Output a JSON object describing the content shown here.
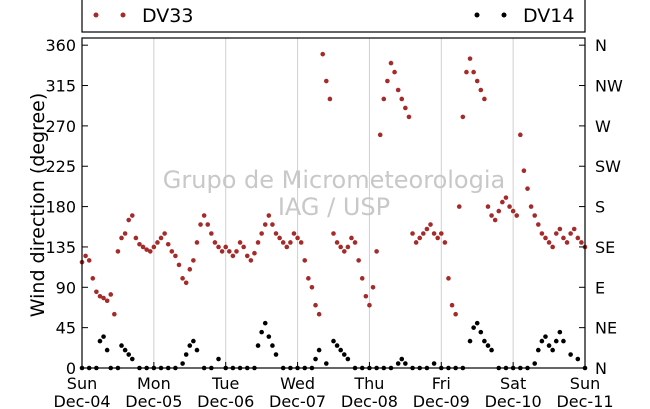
{
  "watermark": {
    "line1": "Grupo de Micrometeorologia",
    "line2": "IAG / USP"
  },
  "chart_data": {
    "type": "scatter",
    "title": "",
    "xlabel": "",
    "ylabel": "Wind direction (degree)",
    "xlim": [
      0,
      7
    ],
    "ylim": [
      0,
      368
    ],
    "yticks": [
      0,
      45,
      90,
      135,
      180,
      225,
      270,
      315,
      360
    ],
    "right_ticks": [
      {
        "value": 0,
        "label": "N"
      },
      {
        "value": 45,
        "label": "NE"
      },
      {
        "value": 90,
        "label": "E"
      },
      {
        "value": 135,
        "label": "SE"
      },
      {
        "value": 180,
        "label": "S"
      },
      {
        "value": 225,
        "label": "SW"
      },
      {
        "value": 270,
        "label": "W"
      },
      {
        "value": 315,
        "label": "NW"
      },
      {
        "value": 360,
        "label": "N"
      }
    ],
    "xticks": [
      {
        "value": 0,
        "day": "Sun",
        "date": "Dec-04"
      },
      {
        "value": 1,
        "day": "Mon",
        "date": "Dec-05"
      },
      {
        "value": 2,
        "day": "Tue",
        "date": "Dec-06"
      },
      {
        "value": 3,
        "day": "Wed",
        "date": "Dec-07"
      },
      {
        "value": 4,
        "day": "Thu",
        "date": "Dec-08"
      },
      {
        "value": 5,
        "day": "Fri",
        "date": "Dec-09"
      },
      {
        "value": 6,
        "day": "Sat",
        "date": "Dec-10"
      },
      {
        "value": 7,
        "day": "Sun",
        "date": "Dec-11"
      }
    ],
    "grid": "vertical",
    "legend_position": "top",
    "series": [
      {
        "name": "DV33",
        "color": "#a52a2a",
        "points": [
          [
            0.0,
            118
          ],
          [
            0.05,
            125
          ],
          [
            0.1,
            120
          ],
          [
            0.15,
            100
          ],
          [
            0.2,
            85
          ],
          [
            0.25,
            80
          ],
          [
            0.3,
            78
          ],
          [
            0.35,
            75
          ],
          [
            0.4,
            82
          ],
          [
            0.45,
            60
          ],
          [
            0.5,
            130
          ],
          [
            0.55,
            145
          ],
          [
            0.6,
            150
          ],
          [
            0.65,
            165
          ],
          [
            0.7,
            170
          ],
          [
            0.75,
            145
          ],
          [
            0.8,
            138
          ],
          [
            0.85,
            135
          ],
          [
            0.9,
            132
          ],
          [
            0.95,
            130
          ],
          [
            1.0,
            135
          ],
          [
            1.05,
            140
          ],
          [
            1.1,
            145
          ],
          [
            1.15,
            150
          ],
          [
            1.2,
            138
          ],
          [
            1.25,
            130
          ],
          [
            1.3,
            125
          ],
          [
            1.35,
            115
          ],
          [
            1.4,
            100
          ],
          [
            1.45,
            95
          ],
          [
            1.5,
            110
          ],
          [
            1.55,
            120
          ],
          [
            1.6,
            140
          ],
          [
            1.65,
            160
          ],
          [
            1.7,
            170
          ],
          [
            1.75,
            160
          ],
          [
            1.8,
            150
          ],
          [
            1.85,
            140
          ],
          [
            1.9,
            135
          ],
          [
            1.95,
            130
          ],
          [
            2.0,
            135
          ],
          [
            2.05,
            130
          ],
          [
            2.1,
            125
          ],
          [
            2.15,
            130
          ],
          [
            2.2,
            140
          ],
          [
            2.25,
            135
          ],
          [
            2.3,
            125
          ],
          [
            2.35,
            120
          ],
          [
            2.4,
            128
          ],
          [
            2.45,
            140
          ],
          [
            2.5,
            150
          ],
          [
            2.55,
            160
          ],
          [
            2.6,
            170
          ],
          [
            2.65,
            160
          ],
          [
            2.7,
            150
          ],
          [
            2.75,
            145
          ],
          [
            2.8,
            140
          ],
          [
            2.85,
            135
          ],
          [
            2.9,
            140
          ],
          [
            2.95,
            150
          ],
          [
            3.0,
            145
          ],
          [
            3.05,
            140
          ],
          [
            3.1,
            120
          ],
          [
            3.15,
            100
          ],
          [
            3.2,
            90
          ],
          [
            3.25,
            70
          ],
          [
            3.3,
            60
          ],
          [
            3.35,
            350
          ],
          [
            3.4,
            320
          ],
          [
            3.45,
            300
          ],
          [
            3.5,
            150
          ],
          [
            3.55,
            140
          ],
          [
            3.6,
            135
          ],
          [
            3.65,
            130
          ],
          [
            3.7,
            135
          ],
          [
            3.75,
            145
          ],
          [
            3.8,
            140
          ],
          [
            3.85,
            120
          ],
          [
            3.9,
            100
          ],
          [
            3.95,
            80
          ],
          [
            4.0,
            70
          ],
          [
            4.05,
            90
          ],
          [
            4.1,
            130
          ],
          [
            4.15,
            260
          ],
          [
            4.2,
            300
          ],
          [
            4.25,
            320
          ],
          [
            4.3,
            340
          ],
          [
            4.35,
            330
          ],
          [
            4.4,
            310
          ],
          [
            4.45,
            300
          ],
          [
            4.5,
            290
          ],
          [
            4.55,
            280
          ],
          [
            4.6,
            150
          ],
          [
            4.65,
            140
          ],
          [
            4.7,
            145
          ],
          [
            4.75,
            150
          ],
          [
            4.8,
            155
          ],
          [
            4.85,
            160
          ],
          [
            4.9,
            150
          ],
          [
            4.95,
            145
          ],
          [
            5.0,
            150
          ],
          [
            5.05,
            140
          ],
          [
            5.1,
            100
          ],
          [
            5.15,
            70
          ],
          [
            5.2,
            60
          ],
          [
            5.25,
            180
          ],
          [
            5.3,
            280
          ],
          [
            5.35,
            330
          ],
          [
            5.4,
            345
          ],
          [
            5.45,
            330
          ],
          [
            5.5,
            320
          ],
          [
            5.55,
            310
          ],
          [
            5.6,
            300
          ],
          [
            5.65,
            180
          ],
          [
            5.7,
            170
          ],
          [
            5.75,
            165
          ],
          [
            5.8,
            175
          ],
          [
            5.85,
            185
          ],
          [
            5.9,
            190
          ],
          [
            5.95,
            180
          ],
          [
            6.0,
            175
          ],
          [
            6.05,
            170
          ],
          [
            6.1,
            260
          ],
          [
            6.15,
            220
          ],
          [
            6.2,
            200
          ],
          [
            6.25,
            180
          ],
          [
            6.3,
            170
          ],
          [
            6.35,
            160
          ],
          [
            6.4,
            150
          ],
          [
            6.45,
            145
          ],
          [
            6.5,
            140
          ],
          [
            6.55,
            135
          ],
          [
            6.6,
            150
          ],
          [
            6.65,
            155
          ],
          [
            6.7,
            145
          ],
          [
            6.75,
            140
          ],
          [
            6.8,
            150
          ],
          [
            6.85,
            155
          ],
          [
            6.9,
            145
          ],
          [
            6.95,
            140
          ],
          [
            7.0,
            135
          ]
        ]
      },
      {
        "name": "DV14",
        "color": "#000000",
        "points": [
          [
            0.0,
            0
          ],
          [
            0.1,
            0
          ],
          [
            0.2,
            0
          ],
          [
            0.25,
            30
          ],
          [
            0.3,
            35
          ],
          [
            0.35,
            20
          ],
          [
            0.4,
            0
          ],
          [
            0.5,
            0
          ],
          [
            0.55,
            25
          ],
          [
            0.6,
            20
          ],
          [
            0.65,
            15
          ],
          [
            0.7,
            10
          ],
          [
            0.8,
            0
          ],
          [
            0.9,
            0
          ],
          [
            1.0,
            0
          ],
          [
            1.1,
            0
          ],
          [
            1.2,
            0
          ],
          [
            1.3,
            0
          ],
          [
            1.4,
            5
          ],
          [
            1.45,
            15
          ],
          [
            1.5,
            25
          ],
          [
            1.55,
            30
          ],
          [
            1.6,
            20
          ],
          [
            1.7,
            0
          ],
          [
            1.8,
            0
          ],
          [
            1.9,
            10
          ],
          [
            2.0,
            0
          ],
          [
            2.1,
            0
          ],
          [
            2.2,
            0
          ],
          [
            2.3,
            0
          ],
          [
            2.4,
            0
          ],
          [
            2.45,
            25
          ],
          [
            2.5,
            40
          ],
          [
            2.55,
            50
          ],
          [
            2.6,
            35
          ],
          [
            2.65,
            25
          ],
          [
            2.7,
            15
          ],
          [
            2.8,
            0
          ],
          [
            2.9,
            0
          ],
          [
            3.0,
            0
          ],
          [
            3.1,
            0
          ],
          [
            3.2,
            0
          ],
          [
            3.25,
            10
          ],
          [
            3.3,
            20
          ],
          [
            3.4,
            5
          ],
          [
            3.5,
            30
          ],
          [
            3.55,
            25
          ],
          [
            3.6,
            20
          ],
          [
            3.65,
            15
          ],
          [
            3.7,
            10
          ],
          [
            3.8,
            0
          ],
          [
            3.9,
            0
          ],
          [
            4.0,
            0
          ],
          [
            4.1,
            0
          ],
          [
            4.2,
            0
          ],
          [
            4.3,
            0
          ],
          [
            4.4,
            5
          ],
          [
            4.45,
            10
          ],
          [
            4.5,
            5
          ],
          [
            4.6,
            0
          ],
          [
            4.7,
            0
          ],
          [
            4.8,
            0
          ],
          [
            4.9,
            5
          ],
          [
            5.0,
            0
          ],
          [
            5.1,
            0
          ],
          [
            5.2,
            0
          ],
          [
            5.3,
            0
          ],
          [
            5.4,
            30
          ],
          [
            5.45,
            45
          ],
          [
            5.5,
            50
          ],
          [
            5.55,
            40
          ],
          [
            5.6,
            30
          ],
          [
            5.65,
            25
          ],
          [
            5.7,
            20
          ],
          [
            5.8,
            0
          ],
          [
            5.9,
            0
          ],
          [
            6.0,
            0
          ],
          [
            6.1,
            0
          ],
          [
            6.2,
            0
          ],
          [
            6.3,
            5
          ],
          [
            6.35,
            20
          ],
          [
            6.4,
            30
          ],
          [
            6.45,
            35
          ],
          [
            6.5,
            25
          ],
          [
            6.55,
            20
          ],
          [
            6.6,
            30
          ],
          [
            6.65,
            40
          ],
          [
            6.7,
            30
          ],
          [
            6.8,
            15
          ],
          [
            6.9,
            10
          ],
          [
            7.0,
            0
          ]
        ]
      }
    ]
  }
}
